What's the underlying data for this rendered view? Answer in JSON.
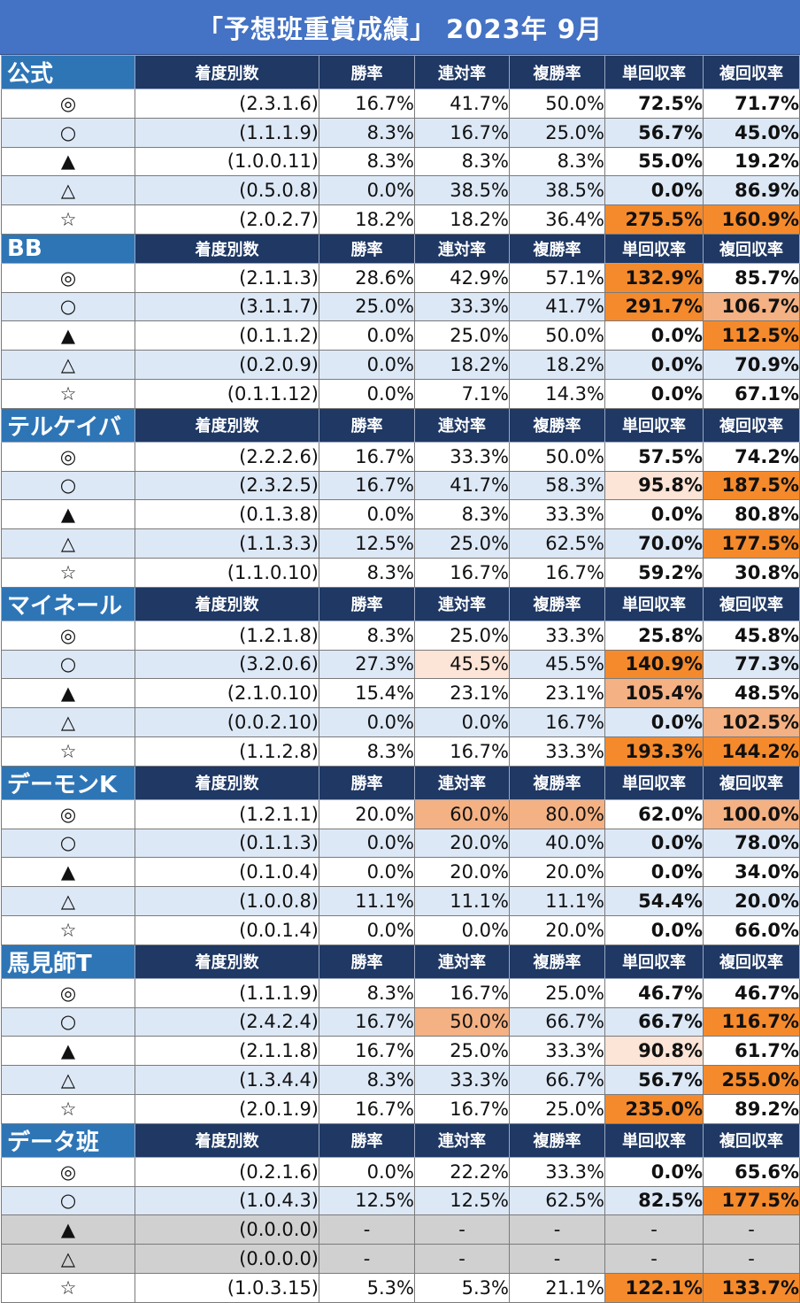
{
  "title": "「予想班重賞成績」 2023年 9月",
  "colors": {
    "title_bg": "#4472c4",
    "header_bg": "#1f3864",
    "group_name_bg": "#2e75b6",
    "row_even_bg": "#dde8f6",
    "row_empty_bg": "#d0d0d0",
    "highlight_strong": "#f58a2c",
    "highlight_mid": "#f4b183",
    "highlight_light": "#fce4d6"
  },
  "column_headers": {
    "counts": "着度別数",
    "win": "勝率",
    "rentai": "連対率",
    "fukusho": "複勝率",
    "tan_return": "単回収率",
    "fuku_return": "複回収率"
  },
  "groups": [
    {
      "name": "公式",
      "rows": [
        {
          "mark": "◎",
          "counts": "(2.3.1.6)",
          "win": "16.7%",
          "rentai": "41.7%",
          "fukusho": "50.0%",
          "tan_return": "72.5%",
          "fuku_return": "71.7%",
          "hl": [
            "",
            "",
            "",
            "",
            ""
          ]
        },
        {
          "mark": "○",
          "counts": "(1.1.1.9)",
          "win": "8.3%",
          "rentai": "16.7%",
          "fukusho": "25.0%",
          "tan_return": "56.7%",
          "fuku_return": "45.0%",
          "hl": [
            "",
            "",
            "",
            "",
            ""
          ]
        },
        {
          "mark": "▲",
          "counts": "(1.0.0.11)",
          "win": "8.3%",
          "rentai": "8.3%",
          "fukusho": "8.3%",
          "tan_return": "55.0%",
          "fuku_return": "19.2%",
          "hl": [
            "",
            "",
            "",
            "",
            ""
          ]
        },
        {
          "mark": "△",
          "counts": "(0.5.0.8)",
          "win": "0.0%",
          "rentai": "38.5%",
          "fukusho": "38.5%",
          "tan_return": "0.0%",
          "fuku_return": "86.9%",
          "hl": [
            "",
            "",
            "",
            "",
            ""
          ]
        },
        {
          "mark": "☆",
          "counts": "(2.0.2.7)",
          "win": "18.2%",
          "rentai": "18.2%",
          "fukusho": "36.4%",
          "tan_return": "275.5%",
          "fuku_return": "160.9%",
          "hl": [
            "",
            "",
            "",
            "strong",
            "strong"
          ]
        }
      ]
    },
    {
      "name": "BB",
      "rows": [
        {
          "mark": "◎",
          "counts": "(2.1.1.3)",
          "win": "28.6%",
          "rentai": "42.9%",
          "fukusho": "57.1%",
          "tan_return": "132.9%",
          "fuku_return": "85.7%",
          "hl": [
            "",
            "",
            "",
            "strong",
            ""
          ]
        },
        {
          "mark": "○",
          "counts": "(3.1.1.7)",
          "win": "25.0%",
          "rentai": "33.3%",
          "fukusho": "41.7%",
          "tan_return": "291.7%",
          "fuku_return": "106.7%",
          "hl": [
            "",
            "",
            "",
            "strong",
            "mid"
          ]
        },
        {
          "mark": "▲",
          "counts": "(0.1.1.2)",
          "win": "0.0%",
          "rentai": "25.0%",
          "fukusho": "50.0%",
          "tan_return": "0.0%",
          "fuku_return": "112.5%",
          "hl": [
            "",
            "",
            "",
            "",
            "strong"
          ]
        },
        {
          "mark": "△",
          "counts": "(0.2.0.9)",
          "win": "0.0%",
          "rentai": "18.2%",
          "fukusho": "18.2%",
          "tan_return": "0.0%",
          "fuku_return": "70.9%",
          "hl": [
            "",
            "",
            "",
            "",
            ""
          ]
        },
        {
          "mark": "☆",
          "counts": "(0.1.1.12)",
          "win": "0.0%",
          "rentai": "7.1%",
          "fukusho": "14.3%",
          "tan_return": "0.0%",
          "fuku_return": "67.1%",
          "hl": [
            "",
            "",
            "",
            "",
            ""
          ]
        }
      ]
    },
    {
      "name": "テルケイバ",
      "rows": [
        {
          "mark": "◎",
          "counts": "(2.2.2.6)",
          "win": "16.7%",
          "rentai": "33.3%",
          "fukusho": "50.0%",
          "tan_return": "57.5%",
          "fuku_return": "74.2%",
          "hl": [
            "",
            "",
            "",
            "",
            ""
          ]
        },
        {
          "mark": "○",
          "counts": "(2.3.2.5)",
          "win": "16.7%",
          "rentai": "41.7%",
          "fukusho": "58.3%",
          "tan_return": "95.8%",
          "fuku_return": "187.5%",
          "hl": [
            "",
            "",
            "",
            "light",
            "strong"
          ]
        },
        {
          "mark": "▲",
          "counts": "(0.1.3.8)",
          "win": "0.0%",
          "rentai": "8.3%",
          "fukusho": "33.3%",
          "tan_return": "0.0%",
          "fuku_return": "80.8%",
          "hl": [
            "",
            "",
            "",
            "",
            ""
          ]
        },
        {
          "mark": "△",
          "counts": "(1.1.3.3)",
          "win": "12.5%",
          "rentai": "25.0%",
          "fukusho": "62.5%",
          "tan_return": "70.0%",
          "fuku_return": "177.5%",
          "hl": [
            "",
            "",
            "",
            "",
            "strong"
          ]
        },
        {
          "mark": "☆",
          "counts": "(1.1.0.10)",
          "win": "8.3%",
          "rentai": "16.7%",
          "fukusho": "16.7%",
          "tan_return": "59.2%",
          "fuku_return": "30.8%",
          "hl": [
            "",
            "",
            "",
            "",
            ""
          ]
        }
      ]
    },
    {
      "name": "マイネール",
      "rows": [
        {
          "mark": "◎",
          "counts": "(1.2.1.8)",
          "win": "8.3%",
          "rentai": "25.0%",
          "fukusho": "33.3%",
          "tan_return": "25.8%",
          "fuku_return": "45.8%",
          "hl": [
            "",
            "",
            "",
            "",
            ""
          ]
        },
        {
          "mark": "○",
          "counts": "(3.2.0.6)",
          "win": "27.3%",
          "rentai": "45.5%",
          "fukusho": "45.5%",
          "tan_return": "140.9%",
          "fuku_return": "77.3%",
          "hl": [
            "",
            "light",
            "",
            "strong",
            ""
          ]
        },
        {
          "mark": "▲",
          "counts": "(2.1.0.10)",
          "win": "15.4%",
          "rentai": "23.1%",
          "fukusho": "23.1%",
          "tan_return": "105.4%",
          "fuku_return": "48.5%",
          "hl": [
            "",
            "",
            "",
            "mid",
            ""
          ]
        },
        {
          "mark": "△",
          "counts": "(0.0.2.10)",
          "win": "0.0%",
          "rentai": "0.0%",
          "fukusho": "16.7%",
          "tan_return": "0.0%",
          "fuku_return": "102.5%",
          "hl": [
            "",
            "",
            "",
            "",
            "mid"
          ]
        },
        {
          "mark": "☆",
          "counts": "(1.1.2.8)",
          "win": "8.3%",
          "rentai": "16.7%",
          "fukusho": "33.3%",
          "tan_return": "193.3%",
          "fuku_return": "144.2%",
          "hl": [
            "",
            "",
            "",
            "strong",
            "strong"
          ]
        }
      ]
    },
    {
      "name": "デーモンK",
      "rows": [
        {
          "mark": "◎",
          "counts": "(1.2.1.1)",
          "win": "20.0%",
          "rentai": "60.0%",
          "fukusho": "80.0%",
          "tan_return": "62.0%",
          "fuku_return": "100.0%",
          "hl": [
            "",
            "mid",
            "mid",
            "",
            "mid"
          ]
        },
        {
          "mark": "○",
          "counts": "(0.1.1.3)",
          "win": "0.0%",
          "rentai": "20.0%",
          "fukusho": "40.0%",
          "tan_return": "0.0%",
          "fuku_return": "78.0%",
          "hl": [
            "",
            "",
            "",
            "",
            ""
          ]
        },
        {
          "mark": "▲",
          "counts": "(0.1.0.4)",
          "win": "0.0%",
          "rentai": "20.0%",
          "fukusho": "20.0%",
          "tan_return": "0.0%",
          "fuku_return": "34.0%",
          "hl": [
            "",
            "",
            "",
            "",
            ""
          ]
        },
        {
          "mark": "△",
          "counts": "(1.0.0.8)",
          "win": "11.1%",
          "rentai": "11.1%",
          "fukusho": "11.1%",
          "tan_return": "54.4%",
          "fuku_return": "20.0%",
          "hl": [
            "",
            "",
            "",
            "",
            ""
          ]
        },
        {
          "mark": "☆",
          "counts": "(0.0.1.4)",
          "win": "0.0%",
          "rentai": "0.0%",
          "fukusho": "20.0%",
          "tan_return": "0.0%",
          "fuku_return": "66.0%",
          "hl": [
            "",
            "",
            "",
            "",
            ""
          ]
        }
      ]
    },
    {
      "name": "馬見師T",
      "rows": [
        {
          "mark": "◎",
          "counts": "(1.1.1.9)",
          "win": "8.3%",
          "rentai": "16.7%",
          "fukusho": "25.0%",
          "tan_return": "46.7%",
          "fuku_return": "46.7%",
          "hl": [
            "",
            "",
            "",
            "",
            ""
          ]
        },
        {
          "mark": "○",
          "counts": "(2.4.2.4)",
          "win": "16.7%",
          "rentai": "50.0%",
          "fukusho": "66.7%",
          "tan_return": "66.7%",
          "fuku_return": "116.7%",
          "hl": [
            "",
            "mid",
            "",
            "",
            "strong"
          ]
        },
        {
          "mark": "▲",
          "counts": "(2.1.1.8)",
          "win": "16.7%",
          "rentai": "25.0%",
          "fukusho": "33.3%",
          "tan_return": "90.8%",
          "fuku_return": "61.7%",
          "hl": [
            "",
            "",
            "",
            "light",
            ""
          ]
        },
        {
          "mark": "△",
          "counts": "(1.3.4.4)",
          "win": "8.3%",
          "rentai": "33.3%",
          "fukusho": "66.7%",
          "tan_return": "56.7%",
          "fuku_return": "255.0%",
          "hl": [
            "",
            "",
            "",
            "",
            "strong"
          ]
        },
        {
          "mark": "☆",
          "counts": "(2.0.1.9)",
          "win": "16.7%",
          "rentai": "16.7%",
          "fukusho": "25.0%",
          "tan_return": "235.0%",
          "fuku_return": "89.2%",
          "hl": [
            "",
            "",
            "",
            "strong",
            ""
          ]
        }
      ]
    },
    {
      "name": "データ班",
      "rows": [
        {
          "mark": "◎",
          "counts": "(0.2.1.6)",
          "win": "0.0%",
          "rentai": "22.2%",
          "fukusho": "33.3%",
          "tan_return": "0.0%",
          "fuku_return": "65.6%",
          "hl": [
            "",
            "",
            "",
            "",
            ""
          ]
        },
        {
          "mark": "○",
          "counts": "(1.0.4.3)",
          "win": "12.5%",
          "rentai": "12.5%",
          "fukusho": "62.5%",
          "tan_return": "82.5%",
          "fuku_return": "177.5%",
          "hl": [
            "",
            "",
            "",
            "",
            "strong"
          ]
        },
        {
          "mark": "▲",
          "counts": "(0.0.0.0)",
          "win": "-",
          "rentai": "-",
          "fukusho": "-",
          "tan_return": "-",
          "fuku_return": "-",
          "hl": [
            "",
            "",
            "",
            "",
            ""
          ],
          "empty": true
        },
        {
          "mark": "△",
          "counts": "(0.0.0.0)",
          "win": "-",
          "rentai": "-",
          "fukusho": "-",
          "tan_return": "-",
          "fuku_return": "-",
          "hl": [
            "",
            "",
            "",
            "",
            ""
          ],
          "empty": true
        },
        {
          "mark": "☆",
          "counts": "(1.0.3.15)",
          "win": "5.3%",
          "rentai": "5.3%",
          "fukusho": "21.1%",
          "tan_return": "122.1%",
          "fuku_return": "133.7%",
          "hl": [
            "",
            "",
            "",
            "strong",
            "strong"
          ]
        }
      ]
    }
  ]
}
